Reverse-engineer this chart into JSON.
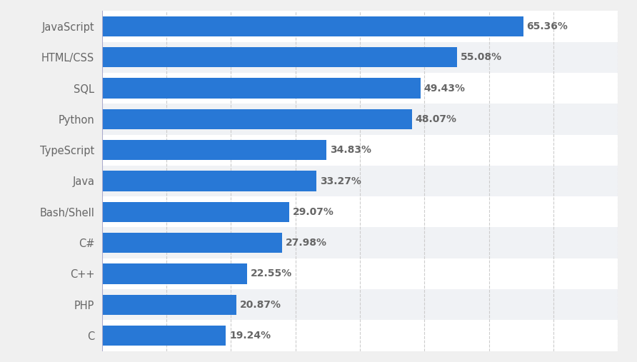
{
  "categories": [
    "JavaScript",
    "HTML/CSS",
    "SQL",
    "Python",
    "TypeScript",
    "Java",
    "Bash/Shell",
    "C#",
    "C++",
    "PHP",
    "C"
  ],
  "values": [
    65.36,
    55.08,
    49.43,
    48.07,
    34.83,
    33.27,
    29.07,
    27.98,
    22.55,
    20.87,
    19.24
  ],
  "bar_color": "#2878d6",
  "label_color": "#666666",
  "left_bg_color": "#f0f0f0",
  "plot_bg_color": "#ffffff",
  "alt_row_color": "#f0f2f5",
  "grid_color": "#cccccc",
  "bar_height": 0.65,
  "xlim": [
    0,
    80
  ],
  "label_fontsize": 10.5,
  "value_fontsize": 10,
  "value_fontweight": "bold"
}
